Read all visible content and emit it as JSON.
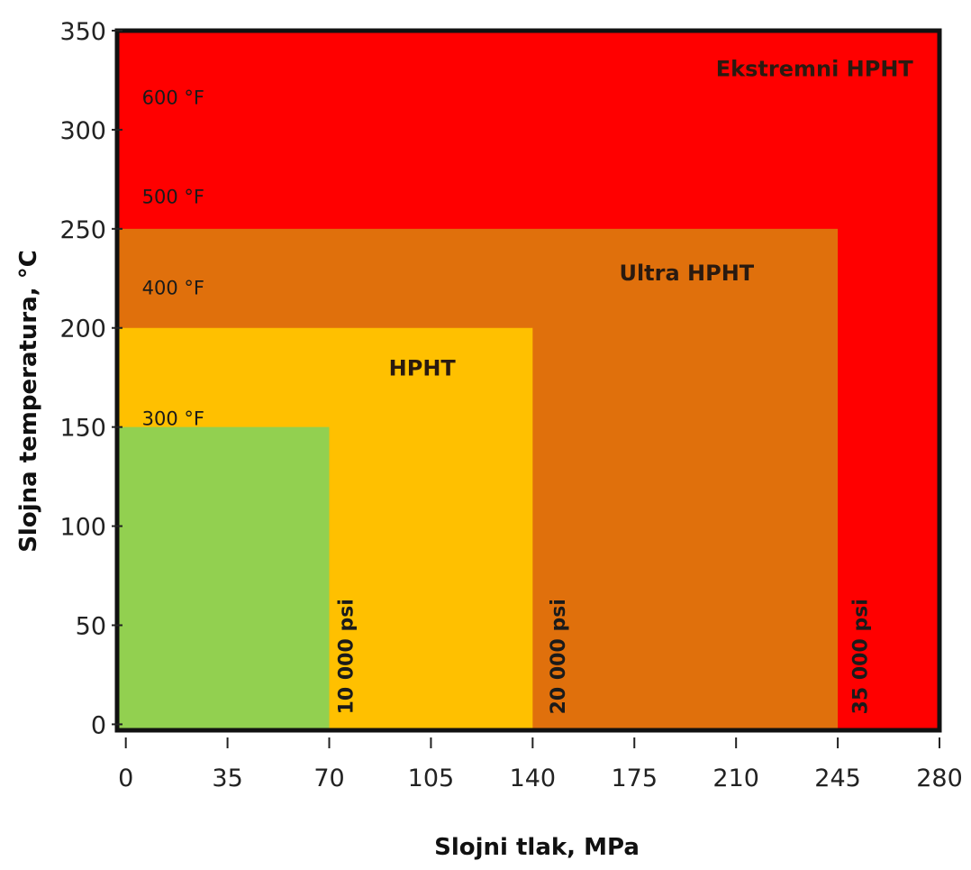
{
  "chart_data": {
    "type": "area",
    "xlabel": "Slojni tlak, MPa",
    "ylabel": "Slojna temperatura, °C",
    "xlim": [
      -3,
      280
    ],
    "ylim": [
      -3,
      350
    ],
    "x_ticks": [
      0,
      35,
      70,
      105,
      140,
      175,
      210,
      245,
      280
    ],
    "y_ticks": [
      0,
      50,
      100,
      150,
      200,
      250,
      300,
      350
    ],
    "grid": false,
    "zones": [
      {
        "name": "Ekstremni HPHT",
        "x_max": 280,
        "y_max": 350,
        "color": "#ff0000",
        "label_at": [
          237,
          327
        ]
      },
      {
        "name": "Ultra HPHT",
        "x_max": 245,
        "y_max": 250,
        "color": "#e0700c",
        "label_at": [
          193,
          224
        ]
      },
      {
        "name": "HPHT",
        "x_max": 140,
        "y_max": 200,
        "color": "#ffc000",
        "label_at": [
          102,
          176
        ]
      },
      {
        "name": "",
        "x_max": 70,
        "y_max": 150,
        "color": "#92d050",
        "label_at": null
      }
    ],
    "temperature_annotations": [
      {
        "text": "600 °F",
        "y": 313
      },
      {
        "text": "500 °F",
        "y": 263
      },
      {
        "text": "400 °F",
        "y": 217
      },
      {
        "text": "300 °F",
        "y": 151
      }
    ],
    "pressure_annotations": [
      {
        "text": "10 000 psi",
        "x": 78
      },
      {
        "text": "20 000 psi",
        "x": 151
      },
      {
        "text": "35 000 psi",
        "x": 255
      }
    ],
    "frame_color": "#111111"
  }
}
